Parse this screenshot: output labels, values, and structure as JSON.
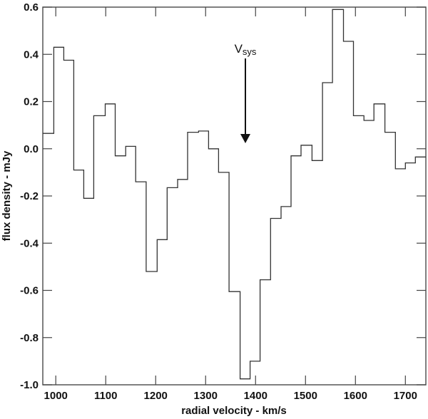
{
  "chart_data": {
    "type": "line",
    "style": "step-histogram",
    "title": "",
    "xlabel": "radial velocity - km/s",
    "ylabel": "flux density - mJy",
    "xlim": [
      974,
      1741
    ],
    "ylim": [
      -1.0,
      0.6
    ],
    "grid": false,
    "legend": null,
    "x_ticks": [
      1000,
      1100,
      1200,
      1300,
      1400,
      1500,
      1600,
      1700
    ],
    "x_tick_labels": [
      "1000",
      "1100",
      "1200",
      "1300",
      "1400",
      "1500",
      "1600",
      "1700"
    ],
    "y_ticks": [
      0.6,
      0.4,
      0.2,
      0.0,
      -0.2,
      -0.4,
      -0.6,
      -0.8,
      -1.0
    ],
    "y_tick_labels": [
      "0.6",
      "0.4",
      "0.2",
      "0.0",
      "-0.2",
      "-0.4",
      "-0.6",
      "-0.8",
      "-1.0"
    ],
    "bin_edges": [
      974,
      996,
      1016,
      1036,
      1056,
      1076,
      1099,
      1119,
      1140,
      1160,
      1181,
      1203,
      1223,
      1244,
      1264,
      1286,
      1306,
      1326,
      1347,
      1369,
      1389,
      1409,
      1430,
      1451,
      1471,
      1491,
      1513,
      1534,
      1554,
      1576,
      1596,
      1617,
      1637,
      1659,
      1680,
      1700,
      1720,
      1741
    ],
    "values": [
      0.065,
      0.43,
      0.375,
      -0.09,
      -0.21,
      0.14,
      0.19,
      -0.03,
      0.01,
      -0.14,
      -0.52,
      -0.385,
      -0.165,
      -0.13,
      0.07,
      0.075,
      0.0,
      -0.1,
      -0.605,
      -0.975,
      -0.9,
      -0.555,
      -0.295,
      -0.245,
      -0.03,
      0.015,
      -0.05,
      0.28,
      0.59,
      0.455,
      0.14,
      0.12,
      0.19,
      0.07,
      -0.085,
      -0.06,
      -0.035
    ],
    "annotations": [
      {
        "text": "V",
        "subscript": "sys",
        "type": "arrow-down",
        "x": 1381,
        "y_from": 0.38,
        "y_to": 0.02
      }
    ]
  },
  "labels": {
    "xlabel": "radial velocity - km/s",
    "ylabel": "flux density - mJy",
    "annotation_main": "V",
    "annotation_sub": "sys"
  }
}
